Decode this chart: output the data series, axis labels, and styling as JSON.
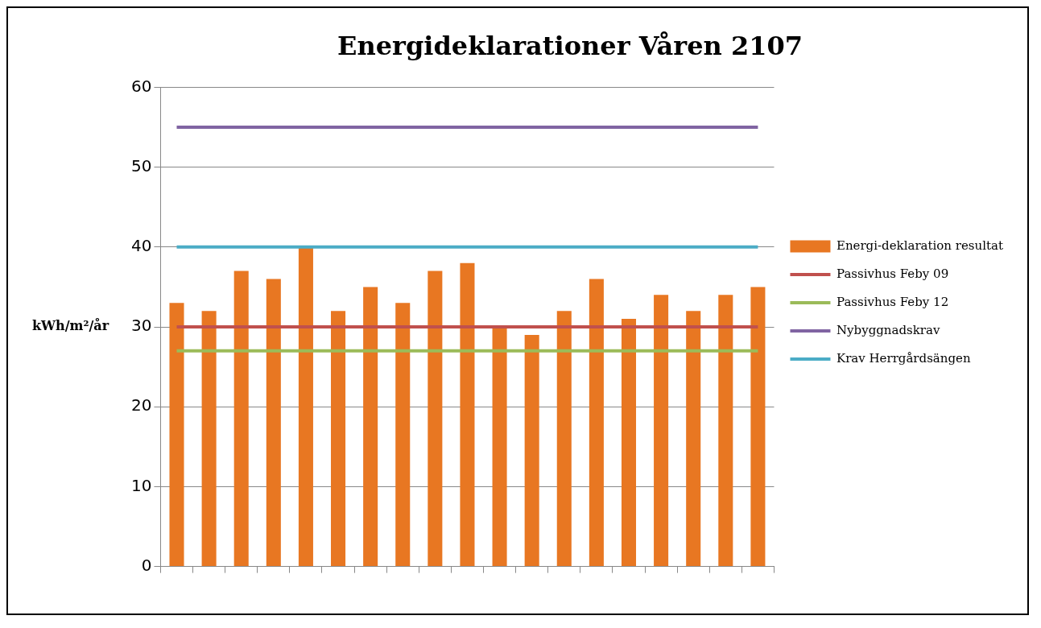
{
  "chart_data": {
    "type": "bar",
    "title": "Energideklarationer Våren 2107",
    "ylabel": "kWh/m²/år",
    "categories": [
      null,
      null,
      null,
      null,
      null,
      null,
      null,
      null,
      null,
      null,
      null,
      null,
      null,
      null,
      null,
      null,
      null,
      null,
      null
    ],
    "series": [
      {
        "name": "Energi-deklaration resultat",
        "color": "#e87722",
        "values": [
          33,
          32,
          37,
          36,
          40,
          32,
          35,
          33,
          37,
          38,
          30,
          29,
          32,
          36,
          31,
          34,
          32,
          34,
          35
        ]
      },
      {
        "name": "Passivhus Feby 09",
        "type": "line",
        "color": "#c0504d",
        "values": [
          30,
          30,
          30,
          30,
          30,
          30,
          30,
          30,
          30,
          30,
          30,
          30,
          30,
          30,
          30,
          30,
          30,
          30,
          30
        ]
      },
      {
        "name": "Passivhus Feby 12",
        "type": "line",
        "color": "#9bbb59",
        "values": [
          27,
          27,
          27,
          27,
          27,
          27,
          27,
          27,
          27,
          27,
          27,
          27,
          27,
          27,
          27,
          27,
          27,
          27,
          27
        ]
      },
      {
        "name": "Nybyggnadskrav",
        "type": "line",
        "color": "#8064a2",
        "values": [
          55,
          55,
          55,
          55,
          55,
          55,
          55,
          55,
          55,
          55,
          55,
          55,
          55,
          55,
          55,
          55,
          55,
          55,
          55
        ]
      },
      {
        "name": "Krav Herrgårdsängen",
        "type": "line",
        "color": "#4bacc6",
        "values": [
          40,
          40,
          40,
          40,
          40,
          40,
          40,
          40,
          40,
          40,
          40,
          40,
          40,
          40,
          40,
          40,
          40,
          40,
          40
        ]
      }
    ],
    "ylim": [
      0,
      60
    ],
    "yticks": [
      0,
      10,
      20,
      30,
      40,
      50,
      60
    ],
    "grid": "y",
    "legend": "right",
    "marker": "none"
  }
}
